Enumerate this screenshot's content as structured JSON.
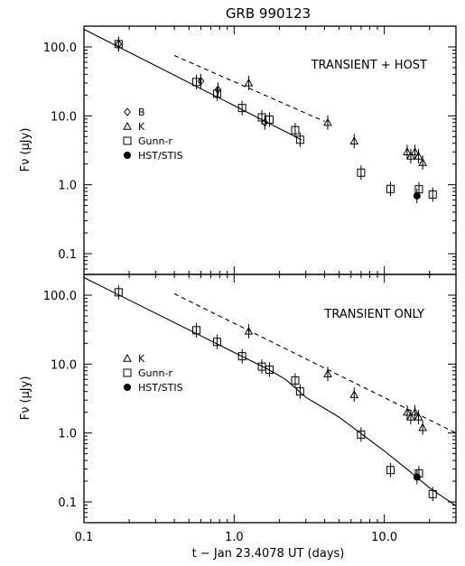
{
  "chart_data": {
    "type": "scatter",
    "title": "GRB 990123",
    "xlabel": "t − Jan 23.4078 UT (days)",
    "xscale": "log",
    "xlim": [
      0.1,
      30
    ],
    "xticks": [
      "0.1",
      "1.0",
      "10.0"
    ],
    "yscale": "log",
    "panels": [
      {
        "annotation": "TRANSIENT + HOST",
        "ylabel": "Fν (μJy)",
        "ylim": [
          0.05,
          200
        ],
        "yticks": [
          "0.1",
          "1.0",
          "10.0",
          "100.0"
        ],
        "legend_position": "middle-left",
        "legend": [
          {
            "name": "B",
            "marker": "diamond"
          },
          {
            "name": "K",
            "marker": "triangle"
          },
          {
            "name": "Gunn-r",
            "marker": "square"
          },
          {
            "name": "HST/STIS",
            "marker": "filled-circle"
          }
        ],
        "series": [
          {
            "name": "B",
            "marker": "diamond",
            "points": [
              [
                0.17,
                110
              ],
              [
                0.6,
                32
              ],
              [
                0.78,
                24
              ],
              [
                1.6,
                8
              ]
            ]
          },
          {
            "name": "K",
            "marker": "triangle",
            "points": [
              [
                1.25,
                30
              ],
              [
                4.2,
                8
              ],
              [
                6.3,
                4.3
              ],
              [
                14.2,
                3.0
              ],
              [
                15.0,
                2.6
              ],
              [
                16.0,
                3.0
              ],
              [
                16.9,
                2.6
              ],
              [
                18.0,
                2.1
              ]
            ]
          },
          {
            "name": "Gunn-r",
            "marker": "square",
            "points": [
              [
                0.17,
                110
              ],
              [
                0.56,
                31
              ],
              [
                0.77,
                21
              ],
              [
                1.13,
                13
              ],
              [
                1.53,
                9.5
              ],
              [
                1.72,
                8.8
              ],
              [
                2.55,
                6.2
              ],
              [
                2.75,
                4.5
              ],
              [
                7.0,
                1.5
              ],
              [
                11.0,
                0.87
              ],
              [
                17.0,
                0.86
              ],
              [
                21.0,
                0.72
              ]
            ]
          },
          {
            "name": "HST/STIS",
            "marker": "filled-circle",
            "points": [
              [
                16.5,
                0.69
              ]
            ]
          }
        ],
        "lines": [
          {
            "style": "solid",
            "points": [
              [
                0.1,
                180
              ],
              [
                2.8,
                4.5
              ]
            ]
          },
          {
            "style": "dashed",
            "points": [
              [
                0.4,
                75
              ],
              [
                4.0,
                8.3
              ]
            ]
          }
        ]
      },
      {
        "annotation": "TRANSIENT ONLY",
        "ylabel": "Fν (μJy)",
        "ylim": [
          0.05,
          200
        ],
        "yticks": [
          "0.1",
          "1.0",
          "10.0",
          "100.0"
        ],
        "legend_position": "middle-left",
        "legend": [
          {
            "name": "K",
            "marker": "triangle"
          },
          {
            "name": "Gunn-r",
            "marker": "square"
          },
          {
            "name": "HST/STIS",
            "marker": "filled-circle"
          }
        ],
        "series": [
          {
            "name": "K",
            "marker": "triangle",
            "points": [
              [
                1.25,
                30
              ],
              [
                4.2,
                7.2
              ],
              [
                6.3,
                3.6
              ],
              [
                14.2,
                2.0
              ],
              [
                15.0,
                1.7
              ],
              [
                16.0,
                2.0
              ],
              [
                16.9,
                1.7
              ],
              [
                18.0,
                1.2
              ]
            ]
          },
          {
            "name": "Gunn-r",
            "marker": "square",
            "points": [
              [
                0.17,
                110
              ],
              [
                0.56,
                31
              ],
              [
                0.77,
                21
              ],
              [
                1.13,
                13
              ],
              [
                1.53,
                9.2
              ],
              [
                1.72,
                8.3
              ],
              [
                2.55,
                5.8
              ],
              [
                2.75,
                4.0
              ],
              [
                7.0,
                0.95
              ],
              [
                11.0,
                0.29
              ],
              [
                17.0,
                0.26
              ],
              [
                21.0,
                0.13
              ]
            ]
          },
          {
            "name": "HST/STIS",
            "marker": "filled-circle",
            "points": [
              [
                16.5,
                0.23
              ]
            ]
          }
        ],
        "lines": [
          {
            "style": "solid",
            "points": [
              [
                0.1,
                180
              ],
              [
                1.7,
                8.3
              ],
              [
                2.2,
                6.0
              ],
              [
                3.0,
                3.3
              ],
              [
                5.0,
                1.7
              ],
              [
                10.0,
                0.55
              ],
              [
                15.0,
                0.27
              ],
              [
                20.0,
                0.16
              ],
              [
                30.0,
                0.088
              ]
            ]
          },
          {
            "style": "dashed",
            "points": [
              [
                0.4,
                105
              ],
              [
                30.0,
                1.0
              ]
            ]
          }
        ]
      }
    ]
  }
}
